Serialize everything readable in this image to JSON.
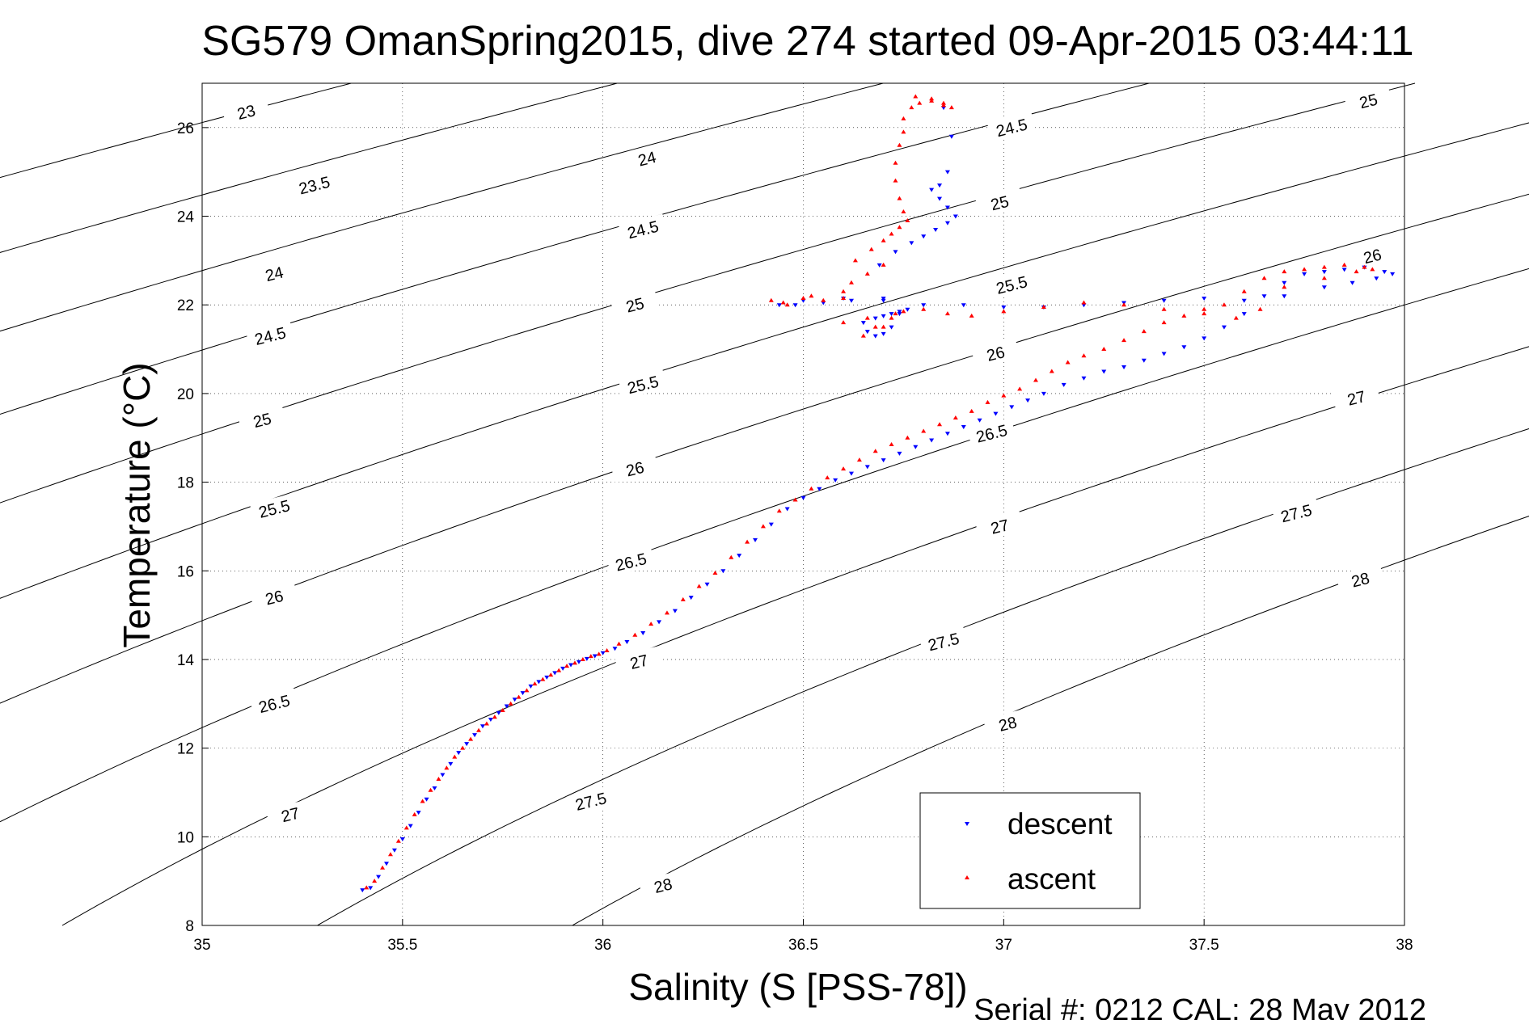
{
  "chart_data": {
    "type": "scatter",
    "title": "SG579 OmanSpring2015, dive 274 started 09-Apr-2015 03:44:11",
    "xlabel": "Salinity (S [PSS-78])",
    "ylabel": "Temperature (°C)",
    "footer": "Serial #: 0212  CAL: 28 May 2012",
    "xlim": [
      35,
      38
    ],
    "ylim": [
      8,
      27
    ],
    "xticks": [
      35,
      35.5,
      36,
      36.5,
      37,
      37.5,
      38
    ],
    "xtick_labels": [
      "35",
      "35.5",
      "36",
      "36.5",
      "37",
      "37.5",
      "38"
    ],
    "yticks": [
      8,
      10,
      12,
      14,
      16,
      18,
      20,
      22,
      24,
      26
    ],
    "ytick_labels": [
      "8",
      "10",
      "12",
      "14",
      "16",
      "18",
      "20",
      "22",
      "24",
      "26"
    ],
    "grid": true,
    "legend_position": "bottom-right",
    "sigma_contours": {
      "levels": [
        23,
        23.5,
        24,
        24.5,
        25,
        25.5,
        26,
        26.5,
        27,
        27.5,
        28
      ],
      "color": "#000000",
      "labels": [
        {
          "text": "23",
          "s": 35.11,
          "t": 26.35
        },
        {
          "text": "23.5",
          "s": 35.28,
          "t": 24.7
        },
        {
          "text": "24",
          "s": 35.18,
          "t": 22.7
        },
        {
          "text": "24.5",
          "s": 35.17,
          "t": 21.3
        },
        {
          "text": "25",
          "s": 35.15,
          "t": 19.4
        },
        {
          "text": "25.5",
          "s": 35.18,
          "t": 17.4
        },
        {
          "text": "26",
          "s": 35.18,
          "t": 15.4
        },
        {
          "text": "26.5",
          "s": 35.18,
          "t": 13.0
        },
        {
          "text": "27",
          "s": 35.22,
          "t": 10.5
        },
        {
          "text": "24",
          "s": 36.11,
          "t": 25.3
        },
        {
          "text": "24.5",
          "s": 36.1,
          "t": 23.7
        },
        {
          "text": "25",
          "s": 36.08,
          "t": 22.0
        },
        {
          "text": "25.5",
          "s": 36.1,
          "t": 20.2
        },
        {
          "text": "26",
          "s": 36.08,
          "t": 18.3
        },
        {
          "text": "26.5",
          "s": 36.07,
          "t": 16.2
        },
        {
          "text": "27",
          "s": 36.09,
          "t": 13.95
        },
        {
          "text": "27.5",
          "s": 35.97,
          "t": 10.8
        },
        {
          "text": "28",
          "s": 36.15,
          "t": 8.9
        },
        {
          "text": "24.5",
          "s": 37.02,
          "t": 26.0
        },
        {
          "text": "25",
          "s": 36.99,
          "t": 24.3
        },
        {
          "text": "25.5",
          "s": 37.02,
          "t": 22.45
        },
        {
          "text": "26",
          "s": 36.98,
          "t": 20.9
        },
        {
          "text": "26.5",
          "s": 36.97,
          "t": 19.1
        },
        {
          "text": "27",
          "s": 36.99,
          "t": 17.0
        },
        {
          "text": "27.5",
          "s": 36.85,
          "t": 14.4
        },
        {
          "text": "28",
          "s": 37.01,
          "t": 12.55
        },
        {
          "text": "25",
          "s": 37.91,
          "t": 26.6
        },
        {
          "text": "26",
          "s": 37.92,
          "t": 23.1
        },
        {
          "text": "27",
          "s": 37.88,
          "t": 19.9
        },
        {
          "text": "27.5",
          "s": 37.73,
          "t": 17.3
        },
        {
          "text": "28",
          "s": 37.89,
          "t": 15.8
        }
      ]
    },
    "series": [
      {
        "name": "descent",
        "color": "#0000ff",
        "marker": "triangle-down",
        "x": [
          35.4,
          35.42,
          35.44,
          35.46,
          35.48,
          35.5,
          35.52,
          35.54,
          35.56,
          35.58,
          35.6,
          35.62,
          35.64,
          35.66,
          35.68,
          35.7,
          35.72,
          35.74,
          35.76,
          35.78,
          35.8,
          35.82,
          35.84,
          35.86,
          35.88,
          35.9,
          35.92,
          35.94,
          35.96,
          35.98,
          36.0,
          36.03,
          36.06,
          36.1,
          36.14,
          36.18,
          36.22,
          36.26,
          36.3,
          36.34,
          36.38,
          36.42,
          36.46,
          36.5,
          36.54,
          36.58,
          36.62,
          36.66,
          36.7,
          36.74,
          36.78,
          36.82,
          36.86,
          36.9,
          36.94,
          36.98,
          37.02,
          37.06,
          37.1,
          37.15,
          37.2,
          37.25,
          37.3,
          37.35,
          37.4,
          37.45,
          37.5,
          37.55,
          37.6,
          37.65,
          37.7,
          37.75,
          37.8,
          37.85,
          37.9,
          37.95,
          37.97,
          37.93,
          37.87,
          37.8,
          37.7,
          37.6,
          37.5,
          37.4,
          37.3,
          37.2,
          37.1,
          37.0,
          36.9,
          36.8,
          36.76,
          36.72,
          36.68,
          36.65,
          36.7,
          36.74,
          36.7,
          36.62,
          36.55,
          36.48,
          36.44,
          36.5,
          36.6,
          36.7,
          36.74,
          36.72,
          36.7,
          36.68,
          36.66,
          36.69,
          36.73,
          36.77,
          36.8,
          36.83,
          36.86,
          36.88,
          36.86,
          36.84,
          36.82,
          36.84,
          36.86,
          36.87,
          36.85
        ],
        "y": [
          8.8,
          8.85,
          9.1,
          9.4,
          9.7,
          9.95,
          10.25,
          10.55,
          10.85,
          11.1,
          11.4,
          11.65,
          11.9,
          12.1,
          12.3,
          12.5,
          12.65,
          12.8,
          12.95,
          13.1,
          13.25,
          13.4,
          13.5,
          13.6,
          13.7,
          13.8,
          13.88,
          13.95,
          14.02,
          14.08,
          14.15,
          14.25,
          14.4,
          14.6,
          14.85,
          15.1,
          15.4,
          15.7,
          16.0,
          16.35,
          16.7,
          17.05,
          17.4,
          17.65,
          17.85,
          18.05,
          18.2,
          18.35,
          18.5,
          18.65,
          18.8,
          18.95,
          19.1,
          19.25,
          19.4,
          19.55,
          19.7,
          19.85,
          20.0,
          20.2,
          20.35,
          20.5,
          20.6,
          20.75,
          20.9,
          21.05,
          21.25,
          21.5,
          21.8,
          22.2,
          22.5,
          22.7,
          22.75,
          22.8,
          22.85,
          22.75,
          22.7,
          22.6,
          22.5,
          22.4,
          22.2,
          22.1,
          22.15,
          22.1,
          22.05,
          22.0,
          21.95,
          21.95,
          22.0,
          22.0,
          21.9,
          21.8,
          21.7,
          21.6,
          21.75,
          21.85,
          22.15,
          22.1,
          22.05,
          22.0,
          22.0,
          22.1,
          22.15,
          22.1,
          21.8,
          21.5,
          21.35,
          21.3,
          21.4,
          22.9,
          23.2,
          23.4,
          23.55,
          23.7,
          23.85,
          24.0,
          24.2,
          24.4,
          24.6,
          24.7,
          25.0,
          25.8,
          26.45
        ]
      },
      {
        "name": "ascent",
        "color": "#ff0000",
        "marker": "triangle-up",
        "x": [
          35.41,
          35.43,
          35.45,
          35.47,
          35.49,
          35.51,
          35.53,
          35.55,
          35.57,
          35.59,
          35.61,
          35.63,
          35.65,
          35.67,
          35.69,
          35.71,
          35.73,
          35.75,
          35.77,
          35.79,
          35.81,
          35.83,
          35.85,
          35.87,
          35.89,
          35.91,
          35.93,
          35.95,
          35.97,
          35.99,
          36.01,
          36.04,
          36.08,
          36.12,
          36.16,
          36.2,
          36.24,
          36.28,
          36.32,
          36.36,
          36.4,
          36.44,
          36.48,
          36.52,
          36.56,
          36.6,
          36.64,
          36.68,
          36.72,
          36.76,
          36.8,
          36.84,
          36.88,
          36.92,
          36.96,
          37.0,
          37.04,
          37.08,
          37.12,
          37.16,
          37.2,
          37.25,
          37.3,
          37.35,
          37.4,
          37.45,
          37.5,
          37.55,
          37.6,
          37.65,
          37.7,
          37.75,
          37.8,
          37.85,
          37.9,
          37.92,
          37.88,
          37.8,
          37.7,
          37.64,
          37.58,
          37.5,
          37.4,
          37.3,
          37.2,
          37.1,
          37.0,
          36.92,
          36.86,
          36.8,
          36.75,
          36.72,
          36.68,
          36.65,
          36.6,
          36.55,
          36.5,
          36.45,
          36.42,
          36.46,
          36.52,
          36.6,
          36.66,
          36.7,
          36.73,
          36.7,
          36.66,
          36.62,
          36.6,
          36.63,
          36.67,
          36.7,
          36.72,
          36.74,
          36.76,
          36.75,
          36.74,
          36.73,
          36.73,
          36.74,
          36.75,
          36.75,
          36.77,
          36.79,
          36.82,
          36.85,
          36.87,
          36.85,
          36.82,
          36.78
        ],
        "y": [
          8.85,
          9.0,
          9.3,
          9.6,
          9.9,
          10.2,
          10.5,
          10.8,
          11.05,
          11.3,
          11.55,
          11.8,
          12.0,
          12.2,
          12.4,
          12.55,
          12.7,
          12.85,
          13.0,
          13.15,
          13.3,
          13.45,
          13.55,
          13.65,
          13.75,
          13.85,
          13.92,
          14.0,
          14.07,
          14.12,
          14.2,
          14.35,
          14.55,
          14.8,
          15.05,
          15.35,
          15.65,
          15.95,
          16.3,
          16.65,
          17.0,
          17.35,
          17.6,
          17.85,
          18.1,
          18.3,
          18.5,
          18.7,
          18.85,
          19.0,
          19.15,
          19.3,
          19.45,
          19.6,
          19.8,
          19.95,
          20.1,
          20.3,
          20.5,
          20.7,
          20.85,
          21.0,
          21.2,
          21.4,
          21.6,
          21.75,
          21.9,
          22.0,
          22.3,
          22.6,
          22.75,
          22.8,
          22.85,
          22.9,
          22.85,
          22.8,
          22.75,
          22.6,
          22.4,
          21.9,
          21.7,
          21.8,
          21.9,
          22.0,
          22.05,
          21.95,
          21.85,
          21.75,
          21.8,
          21.9,
          21.85,
          21.7,
          21.5,
          21.3,
          21.6,
          22.1,
          22.15,
          22.05,
          22.1,
          22.0,
          22.2,
          22.15,
          21.7,
          21.5,
          21.8,
          22.9,
          22.7,
          22.5,
          22.3,
          23.0,
          23.25,
          23.45,
          23.6,
          23.75,
          23.9,
          24.1,
          24.4,
          24.8,
          25.2,
          25.6,
          25.9,
          26.2,
          26.45,
          26.55,
          26.65,
          26.55,
          26.45,
          26.5,
          26.6,
          26.7
        ]
      }
    ]
  }
}
